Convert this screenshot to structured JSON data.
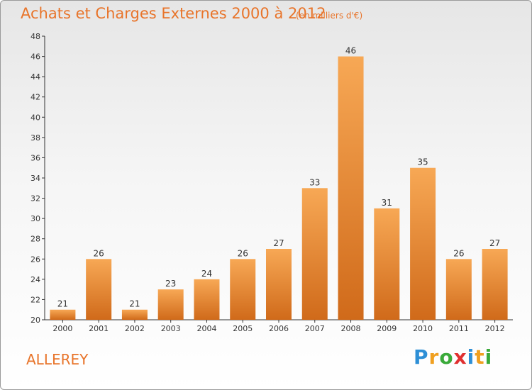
{
  "header": {
    "title": "Achats et Charges Externes 2000 à 2012",
    "unit": "(en milliers d'€)"
  },
  "footer": {
    "commune": "ALLEREY",
    "logo": {
      "text": "Proxiti",
      "letters": [
        "P",
        "r",
        "o",
        "x",
        "i",
        "t",
        "i"
      ],
      "colors": [
        "#2e8fd6",
        "#f0a020",
        "#3aaa3a",
        "#e03030",
        "#2e8fd6",
        "#f0a020",
        "#3aaa3a"
      ]
    }
  },
  "colors": {
    "accent": "#e8742a",
    "bar_light": "#f7a855",
    "bar_dark": "#d06a1a",
    "axis": "#333333"
  },
  "chart_data": {
    "type": "bar",
    "categories": [
      "2000",
      "2001",
      "2002",
      "2003",
      "2004",
      "2005",
      "2006",
      "2007",
      "2008",
      "2009",
      "2010",
      "2011",
      "2012"
    ],
    "values": [
      21,
      26,
      21,
      23,
      24,
      26,
      27,
      33,
      46,
      31,
      35,
      26,
      27
    ],
    "data_labels": [
      "21",
      "26",
      "21",
      "23",
      "24",
      "26",
      "27",
      "33",
      "46",
      "31",
      "35",
      "26",
      "27"
    ],
    "title": "Achats et Charges Externes 2000 à 2012",
    "xlabel": "",
    "ylabel": "",
    "ylim": [
      20,
      48
    ],
    "yticks": [
      20,
      22,
      24,
      26,
      28,
      30,
      32,
      34,
      36,
      38,
      40,
      42,
      44,
      46,
      48
    ],
    "grid": false,
    "legend": "none"
  }
}
